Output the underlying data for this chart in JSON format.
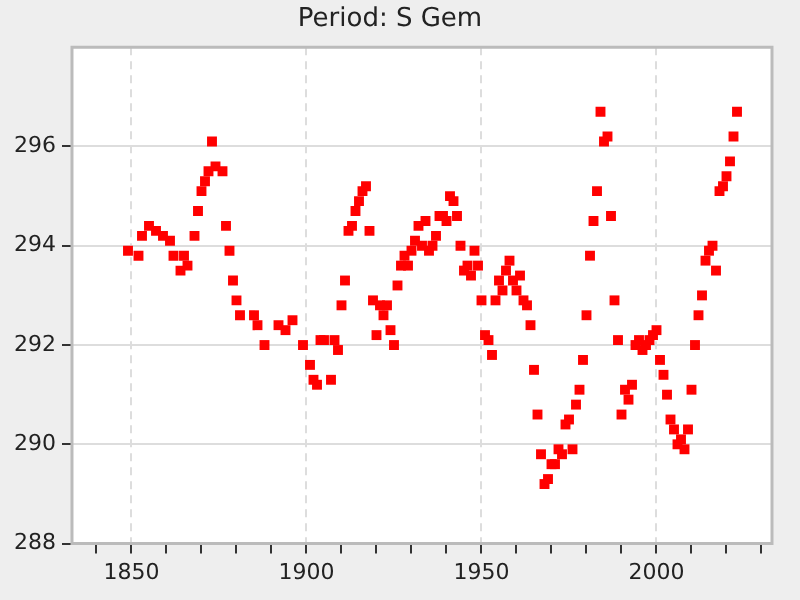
{
  "chart_data": {
    "type": "scatter",
    "title": "Period: S Gem",
    "x": [
      1849,
      1852,
      1853,
      1855,
      1857,
      1859,
      1861,
      1862,
      1864,
      1865,
      1866,
      1868,
      1869,
      1870,
      1871,
      1872,
      1873,
      1874,
      1876,
      1877,
      1878,
      1879,
      1880,
      1881,
      1885,
      1886,
      1888,
      1892,
      1894,
      1896,
      1899,
      1901,
      1902,
      1903,
      1904,
      1905,
      1907,
      1908,
      1909,
      1910,
      1911,
      1912,
      1913,
      1914,
      1915,
      1916,
      1917,
      1918,
      1919,
      1920,
      1921,
      1922,
      1923,
      1924,
      1925,
      1926,
      1927,
      1928,
      1929,
      1930,
      1931,
      1932,
      1933,
      1934,
      1935,
      1936,
      1937,
      1938,
      1939,
      1940,
      1941,
      1942,
      1943,
      1944,
      1945,
      1946,
      1947,
      1948,
      1949,
      1950,
      1951,
      1952,
      1953,
      1954,
      1955,
      1956,
      1957,
      1958,
      1959,
      1960,
      1961,
      1962,
      1963,
      1964,
      1965,
      1966,
      1967,
      1968,
      1969,
      1970,
      1971,
      1972,
      1973,
      1974,
      1975,
      1976,
      1977,
      1978,
      1979,
      1980,
      1981,
      1982,
      1983,
      1984,
      1985,
      1986,
      1987,
      1988,
      1989,
      1990,
      1991,
      1992,
      1993,
      1994,
      1995,
      1996,
      1997,
      1998,
      1999,
      2000,
      2001,
      2002,
      2003,
      2004,
      2005,
      2006,
      2007,
      2008,
      2009,
      2010,
      2011,
      2012,
      2013,
      2014,
      2015,
      2016,
      2017,
      2018,
      2019,
      2020,
      2021,
      2022,
      2023
    ],
    "series": [
      {
        "color": "#ff0000",
        "values": [
          293.9,
          293.8,
          294.2,
          294.4,
          294.3,
          294.2,
          294.1,
          293.8,
          293.5,
          293.8,
          293.6,
          294.2,
          294.7,
          295.1,
          295.3,
          295.5,
          296.1,
          295.6,
          295.5,
          294.4,
          293.9,
          293.3,
          292.9,
          292.6,
          292.6,
          292.4,
          292.0,
          292.4,
          292.3,
          292.5,
          292.0,
          291.6,
          291.3,
          291.2,
          292.1,
          292.1,
          291.3,
          292.1,
          291.9,
          292.8,
          293.3,
          294.3,
          294.4,
          294.7,
          294.9,
          295.1,
          295.2,
          294.3,
          292.9,
          292.2,
          292.8,
          292.6,
          292.8,
          292.3,
          292.0,
          293.2,
          293.6,
          293.8,
          293.6,
          293.9,
          294.1,
          294.4,
          294.0,
          294.5,
          293.9,
          294.0,
          294.2,
          294.6,
          294.6,
          294.5,
          295.0,
          294.9,
          294.6,
          294.0,
          293.5,
          293.6,
          293.4,
          293.9,
          293.6,
          292.9,
          292.2,
          292.1,
          291.8,
          292.9,
          293.3,
          293.1,
          293.5,
          293.7,
          293.3,
          293.1,
          293.4,
          292.9,
          292.8,
          292.4,
          291.5,
          290.6,
          289.8,
          289.2,
          289.3,
          289.6,
          289.6,
          289.9,
          289.8,
          290.4,
          290.5,
          289.9,
          290.8,
          291.1,
          291.7,
          292.6,
          293.8,
          294.5,
          295.1,
          296.7,
          296.1,
          296.2,
          294.6,
          292.9,
          292.1,
          290.6,
          291.1,
          290.9,
          291.2,
          292.0,
          292.1,
          291.9,
          292.0,
          292.1,
          292.2,
          292.3,
          291.7,
          291.4,
          291.0,
          290.5,
          290.3,
          290.0,
          290.1,
          289.9,
          290.3,
          291.1,
          292.0,
          292.6,
          293.0,
          293.7,
          293.9,
          294.0,
          293.5,
          295.1,
          295.2,
          295.4,
          295.7,
          296.2,
          296.7
        ]
      }
    ],
    "marker": "square",
    "grid": true,
    "xlim": [
      1833,
      2033
    ],
    "xticks": [
      {
        "value": 1840,
        "label": null
      },
      1850,
      {
        "value": 1860,
        "label": null
      },
      {
        "value": 1870,
        "label": null
      },
      {
        "value": 1880,
        "label": null
      },
      {
        "value": 1890,
        "label": null
      },
      1900,
      {
        "value": 1910,
        "label": null
      },
      {
        "value": 1920,
        "label": null
      },
      {
        "value": 1930,
        "label": null
      },
      {
        "value": 1940,
        "label": null
      },
      1950,
      {
        "value": 1960,
        "label": null
      },
      {
        "value": 1970,
        "label": null
      },
      {
        "value": 1980,
        "label": null
      },
      {
        "value": 1990,
        "label": null
      },
      2000,
      {
        "value": 2010,
        "label": null
      },
      {
        "value": 2020,
        "label": null
      },
      {
        "value": 2030,
        "label": null
      }
    ],
    "ylim": [
      288,
      298
    ],
    "yticks": [
      288,
      290,
      292,
      294,
      296
    ]
  }
}
